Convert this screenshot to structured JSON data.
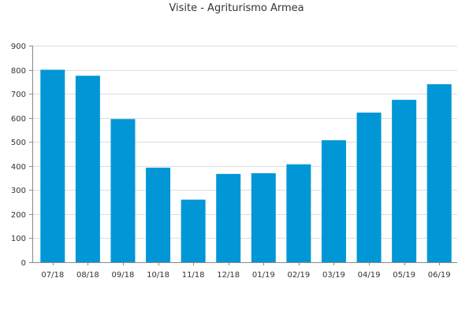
{
  "chart_data": {
    "type": "bar",
    "title": "Visite - Agriturismo Armea",
    "xlabel": "",
    "ylabel": "",
    "categories": [
      "07/18",
      "08/18",
      "09/18",
      "10/18",
      "11/18",
      "12/18",
      "01/19",
      "02/19",
      "03/19",
      "04/19",
      "05/19",
      "06/19"
    ],
    "values": [
      800,
      775,
      595,
      393,
      260,
      367,
      370,
      407,
      507,
      622,
      675,
      740
    ],
    "ylim": [
      0,
      900
    ],
    "yticks": [
      0,
      100,
      200,
      300,
      400,
      500,
      600,
      700,
      800,
      900
    ],
    "grid": true,
    "legend": "none",
    "colors": {
      "bar": "#0197d6",
      "grid": "#dddddd",
      "axis": "#888888",
      "text": "#333333"
    }
  }
}
